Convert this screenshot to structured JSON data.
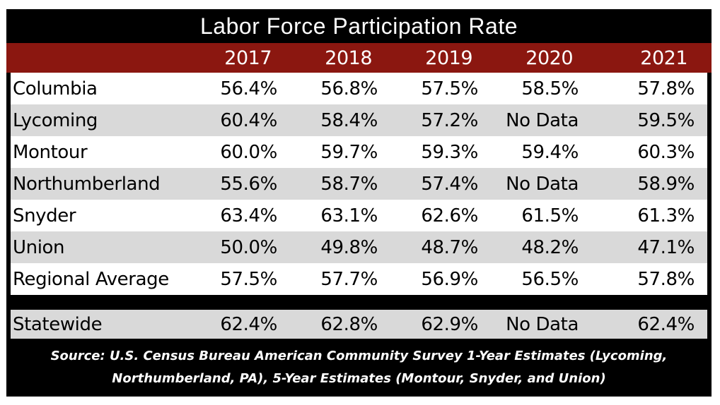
{
  "table": {
    "title": "Labor Force Participation Rate",
    "columns": [
      "2017",
      "2018",
      "2019",
      "2020",
      "2021"
    ],
    "rows": [
      {
        "name": "Columbia",
        "values": [
          "56.4%",
          "56.8%",
          "57.5%",
          "58.5%",
          "57.8%"
        ]
      },
      {
        "name": "Lycoming",
        "values": [
          "60.4%",
          "58.4%",
          "57.2%",
          "No Data",
          "59.5%"
        ]
      },
      {
        "name": "Montour",
        "values": [
          "60.0%",
          "59.7%",
          "59.3%",
          "59.4%",
          "60.3%"
        ]
      },
      {
        "name": "Northumberland",
        "values": [
          "55.6%",
          "58.7%",
          "57.4%",
          "No Data",
          "58.9%"
        ]
      },
      {
        "name": "Snyder",
        "values": [
          "63.4%",
          "63.1%",
          "62.6%",
          "61.5%",
          "61.3%"
        ]
      },
      {
        "name": "Union",
        "values": [
          "50.0%",
          "49.8%",
          "48.7%",
          "48.2%",
          "47.1%"
        ]
      },
      {
        "name": "Regional Average",
        "values": [
          "57.5%",
          "57.7%",
          "56.9%",
          "56.5%",
          "57.8%"
        ]
      }
    ],
    "statewide": {
      "name": "Statewide",
      "values": [
        "62.4%",
        "62.8%",
        "62.9%",
        "No Data",
        "62.4%"
      ]
    },
    "source_lines": [
      "Source: U.S. Census Bureau American Community Survey 1-Year Estimates (Lycoming,",
      "Northumberland, PA), 5-Year Estimates (Montour, Snyder, and Union)"
    ]
  },
  "colors": {
    "frame": "#000000",
    "header": "#8b1710",
    "shade": "#d9d9d9"
  }
}
